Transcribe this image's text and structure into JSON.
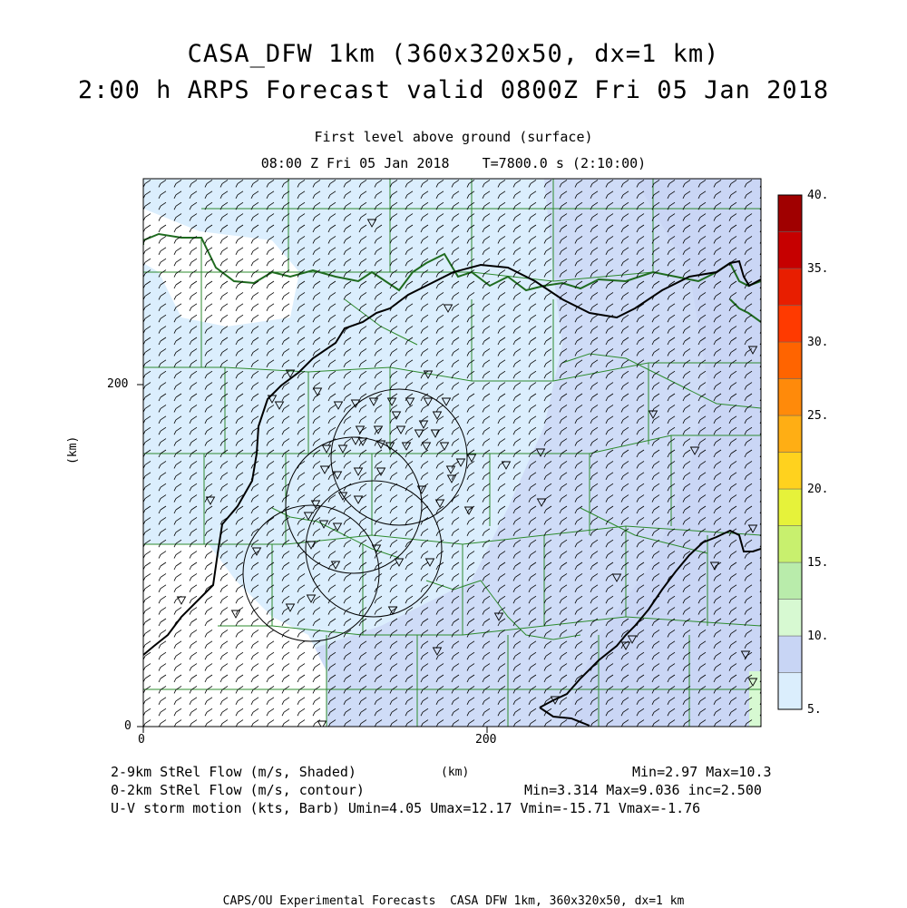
{
  "header": {
    "title_line1": "CASA_DFW 1km (360x320x50, dx=1 km)",
    "title_line2": "2:00 h ARPS Forecast valid 0800Z Fri 05 Jan 2018",
    "level": "First level above ground (surface)",
    "time": "08:00 Z Fri 05 Jan 2018    T=7800.0 s (2:10:00)"
  },
  "axes": {
    "x_ticks": [
      "0",
      "200"
    ],
    "y_ticks": [
      "0",
      "200"
    ],
    "x_unit": "(km)",
    "y_unit": "(km)",
    "x_range": [
      0,
      360
    ],
    "y_range": [
      0,
      320
    ]
  },
  "colorbar": {
    "labels": [
      "5.",
      "10.",
      "15.",
      "20.",
      "25.",
      "30.",
      "35.",
      "40."
    ],
    "colors": [
      "#dbeefd",
      "#c8d5f5",
      "#d7f9d2",
      "#b9ecab",
      "#c8f06e",
      "#e6f23a",
      "#ffd21e",
      "#ffae14",
      "#ff8a0a",
      "#ff6400",
      "#ff3a00",
      "#e81e00",
      "#c60000",
      "#a00000"
    ]
  },
  "legend": {
    "line1_label": "2-9km StRel Flow (m/s, Shaded)",
    "line1_stats": "Min=2.97 Max=10.3",
    "line2_label": "0-2km StRel Flow (m/s, contour)",
    "line2_stats": "Min=3.314 Max=9.036 inc=2.500",
    "line3": "U-V storm motion (kts, Barb) Umin=4.05 Umax=12.17 Vmin=-15.71 Vmax=-1.76"
  },
  "footer": {
    "credit": "CAPS/OU Experimental Forecasts  CASA DFW 1km, 360x320x50, dx=1 km"
  },
  "map_colors": {
    "light_blue": "#dbeefd",
    "lavender": "#cfdcf7",
    "white": "#ffffff",
    "county_lines": "#2e8b2e",
    "contour": "#000000"
  }
}
